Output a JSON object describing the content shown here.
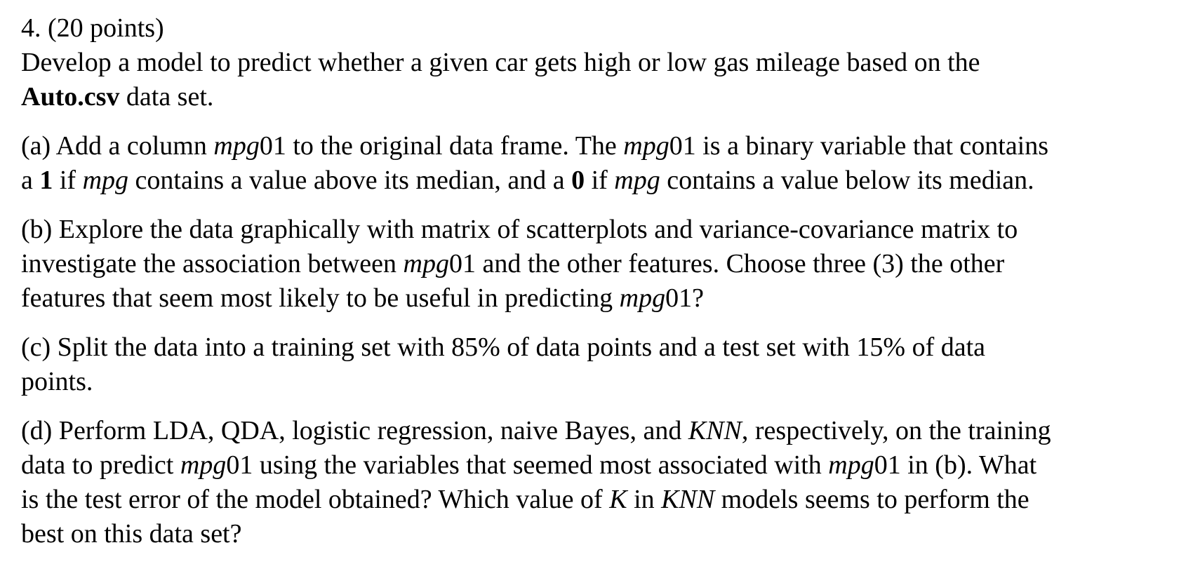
{
  "problem": {
    "heading": "4. (20 points)",
    "intro": {
      "l1": "Develop a model to predict whether a given car gets high or low gas mileage based on the",
      "dataset": "Auto.csv",
      "l2_rest": " data set."
    }
  },
  "parts": {
    "a": {
      "s1": "(a) Add a column ",
      "var1": "mpg",
      "s2": "01 to the original data frame. The ",
      "var2": "mpg",
      "s3": "01 is a binary variable that contains",
      "s4": "a ",
      "one": "1",
      "s5": " if ",
      "var3": "mpg",
      "s6": " contains a value above its median, and a ",
      "zero": "0",
      "s7": " if ",
      "var4": "mpg",
      "s8": " contains a value below its median."
    },
    "b": {
      "l1": "(b) Explore the data graphically with matrix of scatterplots and variance-covariance matrix to",
      "s1": "investigate the association between ",
      "var1": "mpg",
      "s2": "01 and the other features. Choose three (3) the other",
      "s3": "features that seem most likely to be useful in predicting ",
      "var2": "mpg",
      "s4": "01?"
    },
    "c": {
      "l1": "(c) Split the data into a training set with 85% of data points and a test set with 15% of data",
      "l2": "points."
    },
    "d": {
      "s1": "(d) Perform LDA, QDA, logistic regression, naive Bayes, and ",
      "knn1": "KNN",
      "s2": ", respectively, on the training",
      "s3": "data to predict ",
      "var1": "mpg",
      "s4": "01 using the variables that seemed most associated with ",
      "var2": "mpg",
      "s5": "01 in (b). What",
      "s6": "is the test error of the model obtained? Which value of ",
      "k": "K",
      "s7": " in ",
      "knn2": "KNN",
      "s8": " models seems to perform the",
      "s9": "best on this data set?"
    }
  }
}
